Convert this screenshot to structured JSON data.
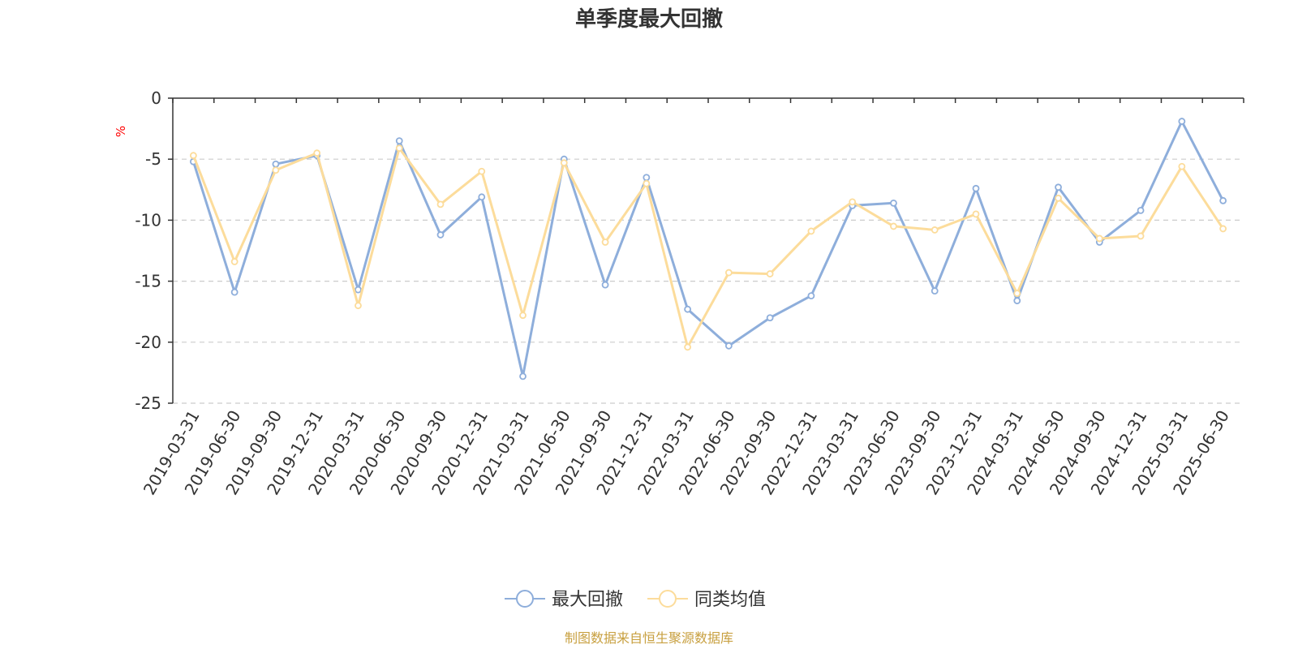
{
  "chart_data": {
    "type": "line",
    "title": "单季度最大回撤",
    "ylabel": "%",
    "ylim": [
      -25,
      0
    ],
    "yticks": [
      0,
      -5,
      -10,
      -15,
      -20,
      -25
    ],
    "grid": true,
    "legend_position": "bottom-center",
    "categories": [
      "2019-03-31",
      "2019-06-30",
      "2019-09-30",
      "2019-12-31",
      "2020-03-31",
      "2020-06-30",
      "2020-09-30",
      "2020-12-31",
      "2021-03-31",
      "2021-06-30",
      "2021-09-30",
      "2021-12-31",
      "2022-03-31",
      "2022-06-30",
      "2022-09-30",
      "2022-12-31",
      "2023-03-31",
      "2023-06-30",
      "2023-09-30",
      "2023-12-31",
      "2024-03-31",
      "2024-06-30",
      "2024-09-30",
      "2024-12-31",
      "2025-03-31",
      "2025-06-30"
    ],
    "series": [
      {
        "name": "最大回撤",
        "color": "#8eaedb",
        "values": [
          -5.2,
          -15.9,
          -5.4,
          -4.7,
          -15.7,
          -3.5,
          -11.2,
          -8.1,
          -22.8,
          -5.0,
          -15.3,
          -6.5,
          -17.3,
          -20.3,
          -18.0,
          -16.2,
          -8.8,
          -8.6,
          -15.8,
          -7.4,
          -16.6,
          -7.3,
          -11.8,
          -9.2,
          -1.9,
          -8.4
        ]
      },
      {
        "name": "同类均值",
        "color": "#fcdc9b",
        "values": [
          -4.7,
          -13.4,
          -5.9,
          -4.5,
          -17.0,
          -4.1,
          -8.7,
          -6.0,
          -17.8,
          -5.3,
          -11.8,
          -7.0,
          -20.4,
          -14.3,
          -14.4,
          -10.9,
          -8.5,
          -10.5,
          -10.8,
          -9.5,
          -16.0,
          -8.2,
          -11.5,
          -11.3,
          -5.6,
          -10.7
        ]
      }
    ],
    "source_text": "制图数据来自恒生聚源数据库",
    "colors": {
      "axis": "#333333",
      "grid": "#cccccc",
      "unit": "#ff0000",
      "source": "#c8a040"
    }
  }
}
